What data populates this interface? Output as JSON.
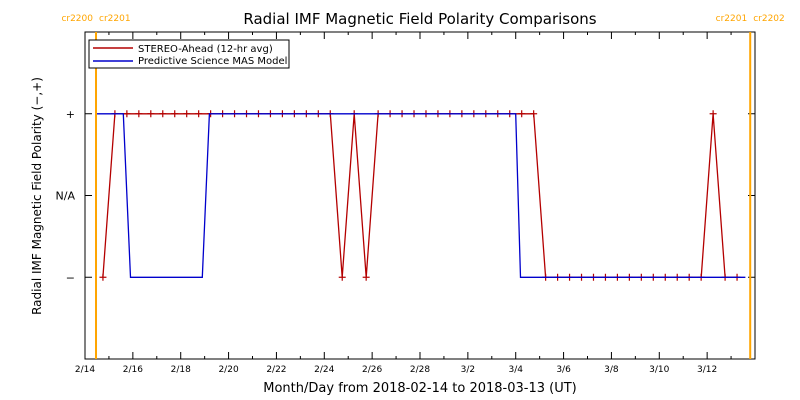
{
  "chart_data": {
    "type": "line",
    "title": "Radial IMF Magnetic Field Polarity Comparisons",
    "xlabel": "Month/Day from 2018-02-14 to 2018-03-13 (UT)",
    "ylabel": "Radial IMF Magnetic Field Polarity (−,+)",
    "x_range_days": [
      0,
      28
    ],
    "x_ticks": [
      {
        "day": 0,
        "label": "2/14"
      },
      {
        "day": 2,
        "label": "2/16"
      },
      {
        "day": 4,
        "label": "2/18"
      },
      {
        "day": 6,
        "label": "2/20"
      },
      {
        "day": 8,
        "label": "2/22"
      },
      {
        "day": 10,
        "label": "2/24"
      },
      {
        "day": 12,
        "label": "2/26"
      },
      {
        "day": 14,
        "label": "2/28"
      },
      {
        "day": 16,
        "label": "3/2"
      },
      {
        "day": 18,
        "label": "3/4"
      },
      {
        "day": 20,
        "label": "3/6"
      },
      {
        "day": 22,
        "label": "3/8"
      },
      {
        "day": 24,
        "label": "3/10"
      },
      {
        "day": 26,
        "label": "3/12"
      }
    ],
    "ylim": [
      -2,
      2
    ],
    "y_ticks": [
      {
        "value": 1,
        "label": "+"
      },
      {
        "value": 0,
        "label": "N/A"
      },
      {
        "value": -1,
        "label": "−"
      }
    ],
    "carrington_markers": [
      {
        "day": 0.46,
        "left_label": "cr2200",
        "right_label": "cr2201",
        "color": "#FFA500"
      },
      {
        "day": 27.8,
        "left_label": "cr2201",
        "right_label": "cr2202",
        "color": "#FFA500"
      }
    ],
    "legend": {
      "placement": "top-left"
    },
    "series": [
      {
        "name": "STEREO-Ahead (12-hr avg)",
        "color": "#B40000",
        "markers": true,
        "points": [
          [
            0.75,
            -1
          ],
          [
            1.25,
            1
          ],
          [
            1.75,
            1
          ],
          [
            2.25,
            1
          ],
          [
            2.75,
            1
          ],
          [
            3.25,
            1
          ],
          [
            3.75,
            1
          ],
          [
            4.25,
            1
          ],
          [
            4.75,
            1
          ],
          [
            5.25,
            1
          ],
          [
            5.75,
            1
          ],
          [
            6.25,
            1
          ],
          [
            6.75,
            1
          ],
          [
            7.25,
            1
          ],
          [
            7.75,
            1
          ],
          [
            8.25,
            1
          ],
          [
            8.75,
            1
          ],
          [
            9.25,
            1
          ],
          [
            9.75,
            1
          ],
          [
            10.25,
            1
          ],
          [
            10.75,
            -1
          ],
          [
            11.25,
            1
          ],
          [
            11.75,
            -1
          ],
          [
            12.25,
            1
          ],
          [
            12.75,
            1
          ],
          [
            13.25,
            1
          ],
          [
            13.75,
            1
          ],
          [
            14.25,
            1
          ],
          [
            14.75,
            1
          ],
          [
            15.25,
            1
          ],
          [
            15.75,
            1
          ],
          [
            16.25,
            1
          ],
          [
            16.75,
            1
          ],
          [
            17.25,
            1
          ],
          [
            17.75,
            1
          ],
          [
            18.25,
            1
          ],
          [
            18.75,
            1
          ],
          [
            19.25,
            -1
          ],
          [
            19.75,
            -1
          ],
          [
            20.25,
            -1
          ],
          [
            20.75,
            -1
          ],
          [
            21.25,
            -1
          ],
          [
            21.75,
            -1
          ],
          [
            22.25,
            -1
          ],
          [
            22.75,
            -1
          ],
          [
            23.25,
            -1
          ],
          [
            23.75,
            -1
          ],
          [
            24.25,
            -1
          ],
          [
            24.75,
            -1
          ],
          [
            25.25,
            -1
          ],
          [
            25.75,
            -1
          ],
          [
            26.25,
            1
          ],
          [
            26.75,
            -1
          ],
          [
            27.25,
            -1
          ]
        ]
      },
      {
        "name": "Predictive Science MAS Model",
        "color": "#0000CC",
        "markers": false,
        "points": [
          [
            0.5,
            1
          ],
          [
            1.6,
            1
          ],
          [
            1.9,
            -1
          ],
          [
            4.9,
            -1
          ],
          [
            5.2,
            1
          ],
          [
            18.0,
            1
          ],
          [
            18.2,
            -1
          ],
          [
            27.6,
            -1
          ]
        ]
      }
    ]
  }
}
